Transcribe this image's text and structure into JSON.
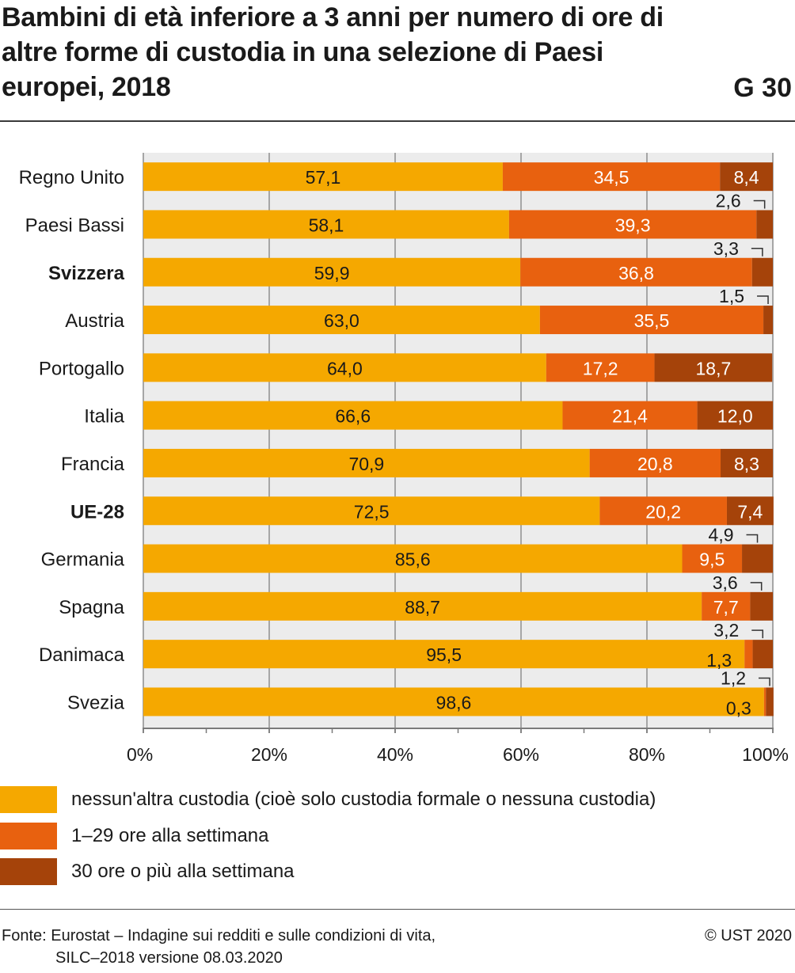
{
  "header": {
    "title": "Bambini di età inferiore a 3 anni per numero di ore di altre forme di custodia in una selezione di Paesi europei, 2018",
    "chart_id": "G 30"
  },
  "legend": {
    "items": [
      {
        "label": "nessun'altra custodia (cioè solo custodia formale o nessuna custodia)",
        "color": "#f5a800"
      },
      {
        "label": "1–29 ore alla settimana",
        "color": "#e8610f"
      },
      {
        "label": "30 ore o più alla settimana",
        "color": "#a5430a"
      }
    ]
  },
  "footer": {
    "source_line1": "Fonte: Eurostat – Indagine sui redditi e sulle condizioni di vita,",
    "source_line2": "SILC–2018 versione 08.03.2020",
    "copyright": "© UST 2020"
  },
  "chart_data": {
    "type": "bar",
    "orientation": "horizontal",
    "stacked": true,
    "categories": [
      "Regno Unito",
      "Paesi Bassi",
      "Svizzera",
      "Austria",
      "Portogallo",
      "Italia",
      "Francia",
      "UE-28",
      "Germania",
      "Spagna",
      "Danimaca",
      "Svezia"
    ],
    "bold_categories": [
      "Svizzera",
      "UE-28"
    ],
    "series": [
      {
        "name": "nessun'altra custodia (cioè solo custodia formale o nessuna custodia)",
        "color": "#f5a800",
        "values": [
          57.1,
          58.1,
          59.9,
          63.0,
          64.0,
          66.6,
          70.9,
          72.5,
          85.6,
          88.7,
          95.5,
          98.6
        ],
        "labels": [
          "57,1",
          "58,1",
          "59,9",
          "63,0",
          "64,0",
          "66,6",
          "70,9",
          "72,5",
          "85,6",
          "88,7",
          "95,5",
          "98,6"
        ]
      },
      {
        "name": "1–29 ore alla settimana",
        "color": "#e8610f",
        "values": [
          34.5,
          39.3,
          36.8,
          35.5,
          17.2,
          21.4,
          20.8,
          20.2,
          9.5,
          7.7,
          1.3,
          0.3
        ],
        "labels": [
          "34,5",
          "39,3",
          "36,8",
          "35,5",
          "17,2",
          "21,4",
          "20,8",
          "20,2",
          "9,5",
          "7,7",
          "1,3",
          "0,3"
        ]
      },
      {
        "name": "30 ore o più alla settimana",
        "color": "#a5430a",
        "values": [
          8.4,
          2.6,
          3.3,
          1.5,
          18.7,
          12.0,
          8.3,
          7.4,
          4.9,
          3.6,
          3.2,
          1.2
        ],
        "labels": [
          "8,4",
          "2,6",
          "3,3",
          "1,5",
          "18,7",
          "12,0",
          "8,3",
          "7,4",
          "4,9",
          "3,6",
          "3,2",
          "1,2"
        ]
      }
    ],
    "xlim": [
      0,
      100
    ],
    "x_ticks": [
      "0%",
      "20%",
      "40%",
      "60%",
      "80%",
      "100%"
    ],
    "grid": true
  }
}
